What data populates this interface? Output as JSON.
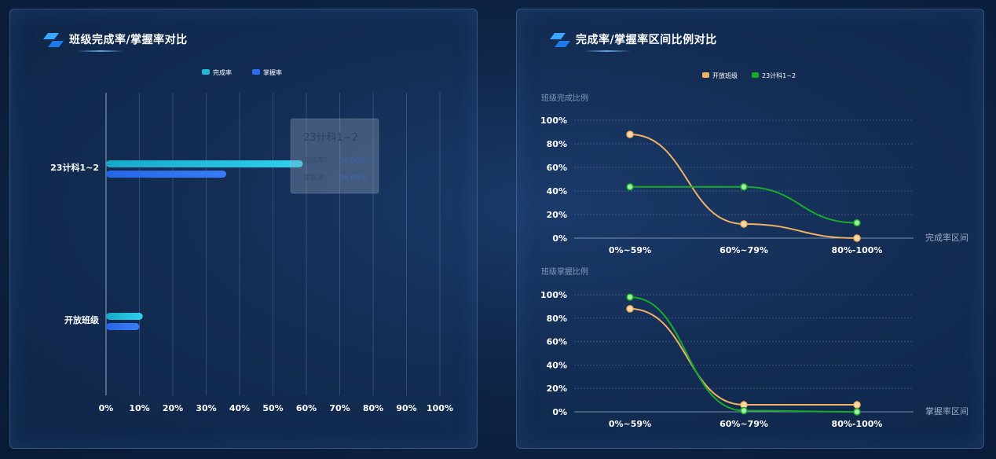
{
  "left_panel": {
    "title": "班级完成率/掌握率对比"
  },
  "right_panel": {
    "title": "完成率/掌握率区间比例对比"
  },
  "tooltip": {
    "title": "23计科1~2",
    "rows": [
      {
        "label": "完成率：",
        "value": "58.96%"
      },
      {
        "label": "掌握率：",
        "value": "36.00%"
      }
    ]
  },
  "colors": {
    "completion": "#1fb8d6",
    "mastery": "#2f6df0",
    "open_class": "#f2b264",
    "class_23": "#1aaa2a"
  },
  "chart_data": [
    {
      "type": "bar",
      "orientation": "horizontal",
      "categories": [
        "23计科1~2",
        "开放班级"
      ],
      "series": [
        {
          "name": "完成率",
          "values": [
            58.96,
            11
          ]
        },
        {
          "name": "掌握率",
          "values": [
            36.0,
            10
          ]
        }
      ],
      "x_ticks": [
        "0%",
        "10%",
        "20%",
        "30%",
        "40%",
        "50%",
        "60%",
        "70%",
        "80%",
        "90%",
        "100%"
      ],
      "xlim": [
        0,
        100
      ],
      "legend": "top-center",
      "grid": true
    },
    {
      "type": "line",
      "ylabel": "班级完成比例",
      "xlabel": "完成率区间",
      "categories": [
        "0%~59%",
        "60%~79%",
        "80%-100%"
      ],
      "y_ticks": [
        "0%",
        "20%",
        "40%",
        "60%",
        "80%",
        "100%"
      ],
      "ylim": [
        0,
        100
      ],
      "series": [
        {
          "name": "开放班级",
          "values": [
            88,
            12,
            0
          ]
        },
        {
          "name": "23计科1~2",
          "values": [
            43.5,
            43.5,
            13
          ]
        }
      ],
      "legend": "top-center",
      "grid": true
    },
    {
      "type": "line",
      "ylabel": "班级掌握比例",
      "xlabel": "掌握率区间",
      "categories": [
        "0%~59%",
        "60%~79%",
        "80%-100%"
      ],
      "y_ticks": [
        "0%",
        "20%",
        "40%",
        "60%",
        "80%",
        "100%"
      ],
      "ylim": [
        0,
        100
      ],
      "series": [
        {
          "name": "开放班级",
          "values": [
            88,
            6,
            6
          ]
        },
        {
          "name": "23计科1~2",
          "values": [
            98,
            1,
            0
          ]
        }
      ],
      "grid": true
    }
  ]
}
